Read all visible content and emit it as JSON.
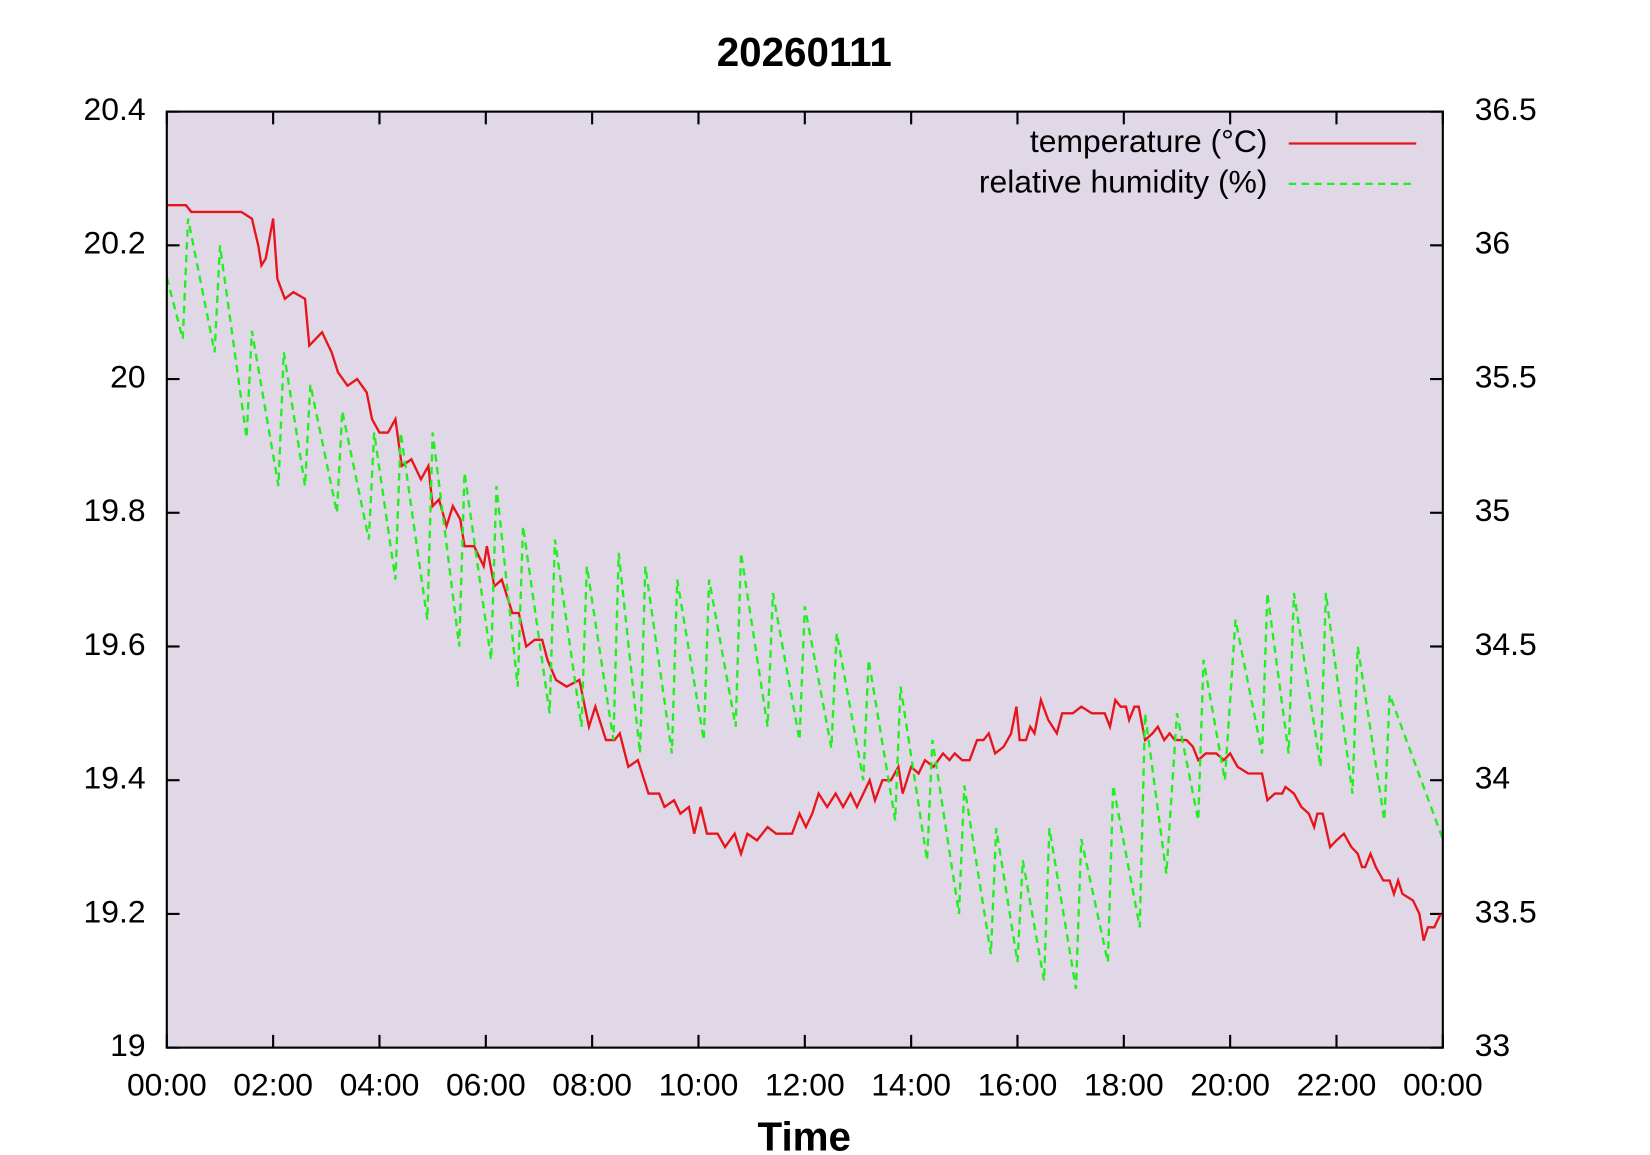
{
  "chart_data": {
    "type": "line",
    "title": "20260111",
    "xlabel": "Time",
    "xlim": [
      0,
      24
    ],
    "xticks": [
      {
        "value": 0,
        "label": "00:00"
      },
      {
        "value": 2,
        "label": "02:00"
      },
      {
        "value": 4,
        "label": "04:00"
      },
      {
        "value": 6,
        "label": "06:00"
      },
      {
        "value": 8,
        "label": "08:00"
      },
      {
        "value": 10,
        "label": "10:00"
      },
      {
        "value": 12,
        "label": "12:00"
      },
      {
        "value": 14,
        "label": "14:00"
      },
      {
        "value": 16,
        "label": "16:00"
      },
      {
        "value": 18,
        "label": "18:00"
      },
      {
        "value": 20,
        "label": "20:00"
      },
      {
        "value": 22,
        "label": "22:00"
      },
      {
        "value": 24,
        "label": "00:00"
      }
    ],
    "ylim": [
      19,
      20.4
    ],
    "yticks": [
      19,
      19.2,
      19.4,
      19.6,
      19.8,
      20,
      20.2,
      20.4
    ],
    "y2lim": [
      33,
      36.5
    ],
    "y2ticks": [
      33,
      33.5,
      34,
      34.5,
      35,
      35.5,
      36,
      36.5
    ],
    "background": "#e0d8e6",
    "legend": "upper right",
    "series": [
      {
        "name": "temperature (°C)",
        "color": "#e8141c",
        "linestyle": "solid",
        "x": [
          0,
          0.36,
          0.46,
          1.4,
          1.6,
          1.72,
          1.78,
          1.86,
          2.0,
          2.08,
          2.22,
          2.38,
          2.6,
          2.68,
          2.8,
          2.92,
          3.1,
          3.22,
          3.4,
          3.58,
          3.76,
          3.86,
          4.0,
          4.16,
          4.3,
          4.42,
          4.6,
          4.78,
          4.92,
          5.0,
          5.12,
          5.26,
          5.38,
          5.52,
          5.6,
          5.78,
          5.96,
          6.02,
          6.16,
          6.3,
          6.38,
          6.5,
          6.62,
          6.76,
          6.92,
          7.06,
          7.16,
          7.32,
          7.52,
          7.76,
          7.94,
          8.06,
          8.26,
          8.42,
          8.52,
          8.68,
          8.86,
          9.06,
          9.26,
          9.36,
          9.54,
          9.66,
          9.82,
          9.92,
          10.04,
          10.16,
          10.36,
          10.5,
          10.68,
          10.8,
          10.92,
          11.1,
          11.3,
          11.46,
          11.76,
          11.9,
          12.02,
          12.14,
          12.26,
          12.42,
          12.58,
          12.72,
          12.86,
          12.98,
          13.1,
          13.22,
          13.32,
          13.46,
          13.62,
          13.76,
          13.84,
          14.0,
          14.14,
          14.26,
          14.42,
          14.6,
          14.72,
          14.82,
          14.96,
          15.1,
          15.24,
          15.36,
          15.46,
          15.58,
          15.74,
          15.88,
          15.98,
          16.04,
          16.16,
          16.24,
          16.32,
          16.44,
          16.58,
          16.74,
          16.84,
          17.04,
          17.2,
          17.4,
          17.64,
          17.74,
          17.84,
          17.94,
          18.04,
          18.1,
          18.2,
          18.28,
          18.4,
          18.54,
          18.64,
          18.76,
          18.86,
          18.96,
          19.18,
          19.3,
          19.4,
          19.54,
          19.74,
          19.88,
          20.0,
          20.14,
          20.34,
          20.6,
          20.7,
          20.84,
          20.98,
          21.04,
          21.2,
          21.34,
          21.48,
          21.58,
          21.64,
          21.74,
          21.88,
          22.0,
          22.14,
          22.28,
          22.4,
          22.48,
          22.54,
          22.64,
          22.74,
          22.88,
          23.0,
          23.08,
          23.16,
          23.24,
          23.44,
          23.56,
          23.64,
          23.72,
          23.84,
          23.96
        ],
        "values": [
          20.26,
          20.26,
          20.25,
          20.25,
          20.24,
          20.2,
          20.17,
          20.18,
          20.24,
          20.15,
          20.12,
          20.13,
          20.12,
          20.05,
          20.06,
          20.07,
          20.04,
          20.01,
          19.99,
          20.0,
          19.98,
          19.94,
          19.92,
          19.92,
          19.94,
          19.87,
          19.88,
          19.85,
          19.87,
          19.81,
          19.82,
          19.78,
          19.81,
          19.79,
          19.75,
          19.75,
          19.72,
          19.75,
          19.69,
          19.7,
          19.68,
          19.65,
          19.65,
          19.6,
          19.61,
          19.61,
          19.58,
          19.55,
          19.54,
          19.55,
          19.48,
          19.51,
          19.46,
          19.46,
          19.47,
          19.42,
          19.43,
          19.38,
          19.38,
          19.36,
          19.37,
          19.35,
          19.36,
          19.32,
          19.36,
          19.32,
          19.32,
          19.3,
          19.32,
          19.29,
          19.32,
          19.31,
          19.33,
          19.32,
          19.32,
          19.35,
          19.33,
          19.35,
          19.38,
          19.36,
          19.38,
          19.36,
          19.38,
          19.36,
          19.38,
          19.4,
          19.37,
          19.4,
          19.4,
          19.42,
          19.38,
          19.42,
          19.41,
          19.43,
          19.42,
          19.44,
          19.43,
          19.44,
          19.43,
          19.43,
          19.46,
          19.46,
          19.47,
          19.44,
          19.45,
          19.47,
          19.51,
          19.46,
          19.46,
          19.48,
          19.47,
          19.52,
          19.49,
          19.47,
          19.5,
          19.5,
          19.51,
          19.5,
          19.5,
          19.48,
          19.52,
          19.51,
          19.51,
          19.49,
          19.51,
          19.51,
          19.46,
          19.47,
          19.48,
          19.46,
          19.47,
          19.46,
          19.46,
          19.45,
          19.43,
          19.44,
          19.44,
          19.43,
          19.44,
          19.42,
          19.41,
          19.41,
          19.37,
          19.38,
          19.38,
          19.39,
          19.38,
          19.36,
          19.35,
          19.33,
          19.35,
          19.35,
          19.3,
          19.31,
          19.32,
          19.3,
          19.29,
          19.27,
          19.27,
          19.29,
          19.27,
          19.25,
          19.25,
          19.23,
          19.25,
          19.23,
          19.22,
          19.2,
          19.16,
          19.18,
          19.18,
          19.2
        ]
      },
      {
        "name": "relative humidity (%)",
        "color": "#22ee22",
        "linestyle": "dashed",
        "axis": "y2",
        "x": [
          0,
          0.3,
          0.4,
          0.9,
          1.0,
          1.5,
          1.6,
          2.1,
          2.2,
          2.6,
          2.7,
          3.2,
          3.3,
          3.8,
          3.9,
          4.3,
          4.4,
          4.9,
          5.0,
          5.5,
          5.6,
          6.1,
          6.2,
          6.6,
          6.7,
          7.2,
          7.3,
          7.8,
          7.9,
          8.4,
          8.5,
          8.9,
          9.0,
          9.5,
          9.6,
          10.1,
          10.2,
          10.7,
          10.8,
          11.3,
          11.4,
          11.9,
          12.0,
          12.5,
          12.6,
          13.1,
          13.2,
          13.7,
          13.8,
          14.3,
          14.4,
          14.9,
          15.0,
          15.5,
          15.6,
          16.0,
          16.1,
          16.5,
          16.6,
          17.1,
          17.2,
          17.7,
          17.8,
          18.3,
          18.4,
          18.8,
          19.0,
          19.4,
          19.5,
          19.9,
          20.1,
          20.6,
          20.7,
          21.1,
          21.2,
          21.7,
          21.8,
          22.3,
          22.4,
          22.9,
          23.0,
          24.0
        ],
        "values": [
          35.88,
          35.65,
          36.1,
          35.6,
          36.0,
          35.28,
          35.68,
          35.1,
          35.6,
          35.1,
          35.48,
          35.0,
          35.38,
          34.9,
          35.3,
          34.75,
          35.3,
          34.6,
          35.3,
          34.5,
          35.15,
          34.45,
          35.1,
          34.35,
          34.95,
          34.25,
          34.9,
          34.2,
          34.8,
          34.15,
          34.85,
          34.1,
          34.8,
          34.1,
          34.75,
          34.15,
          34.75,
          34.2,
          34.85,
          34.2,
          34.7,
          34.15,
          34.65,
          34.12,
          34.55,
          34.0,
          34.45,
          33.85,
          34.35,
          33.7,
          34.15,
          33.5,
          33.98,
          33.35,
          33.82,
          33.32,
          33.7,
          33.25,
          33.82,
          33.22,
          33.78,
          33.32,
          33.98,
          33.45,
          34.25,
          33.65,
          34.25,
          33.85,
          34.45,
          34.0,
          34.6,
          34.1,
          34.7,
          34.1,
          34.7,
          34.05,
          34.7,
          33.95,
          34.5,
          33.85,
          34.32,
          33.78
        ]
      }
    ]
  }
}
